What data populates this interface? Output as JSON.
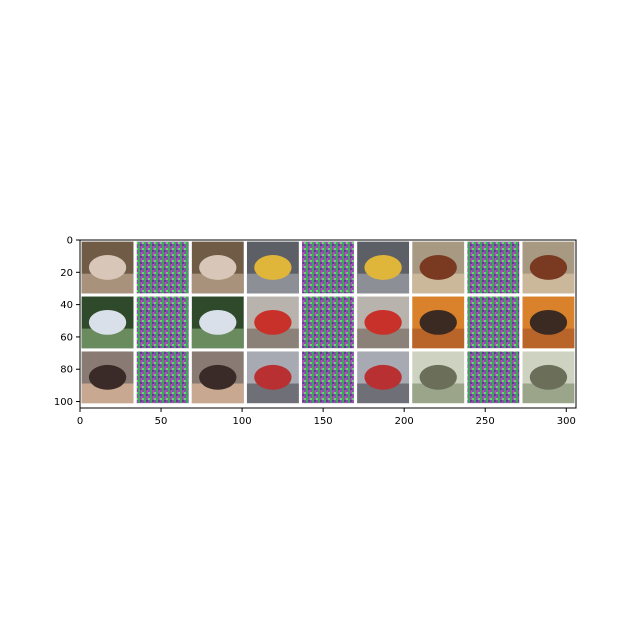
{
  "axes": {
    "x_range": [
      0,
      306
    ],
    "y_range": [
      0,
      104
    ],
    "x_ticks": [
      0,
      50,
      100,
      150,
      200,
      250,
      300
    ],
    "y_ticks": [
      0,
      20,
      40,
      60,
      80,
      100
    ]
  },
  "grid": {
    "rows": 3,
    "cols": 9,
    "tiles": [
      [
        "horse-original",
        "noise-perturbation",
        "horse-reconstructed",
        "yellow-car-original",
        "noise-perturbation",
        "yellow-car-reconstructed",
        "brown-horse-original",
        "noise-perturbation",
        "brown-horse-reconstructed"
      ],
      [
        "white-dog-original",
        "noise-perturbation",
        "white-dog-reconstructed",
        "red-car-original",
        "noise-perturbation",
        "red-car-reconstructed",
        "cat-original",
        "noise-perturbation",
        "cat-reconstructed"
      ],
      [
        "rider-horse-original",
        "noise-perturbation",
        "rider-horse-reconstructed",
        "red-sports-car-original",
        "noise-perturbation",
        "red-sports-car-reconstructed",
        "frog-original",
        "noise-perturbation",
        "frog-reconstructed"
      ]
    ]
  },
  "colors": {
    "noise_green": "#3fa55a",
    "noise_magenta": "#b93ab8",
    "noise_purple": "#5b3f8f",
    "frame": "#000000"
  }
}
